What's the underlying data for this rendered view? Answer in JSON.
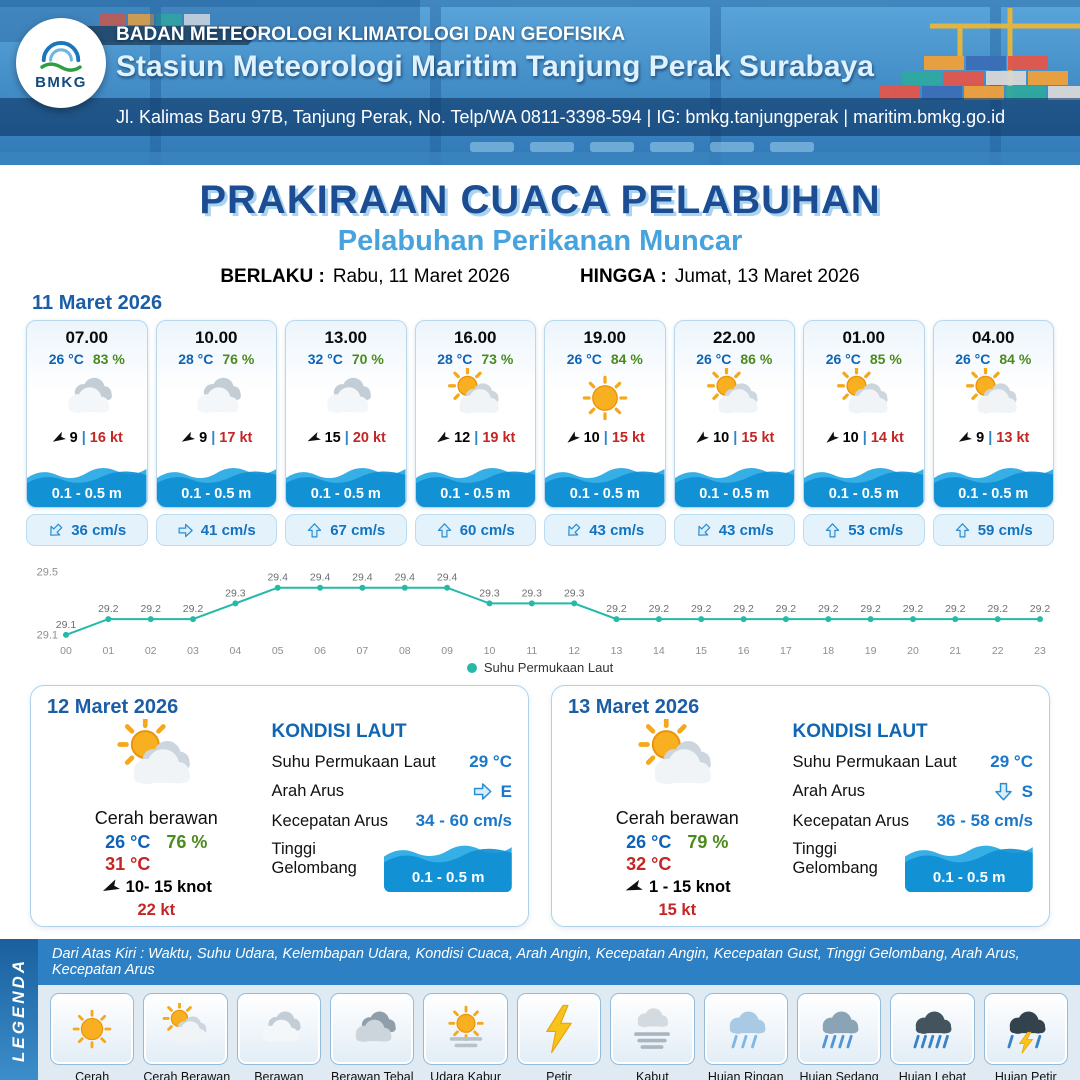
{
  "header": {
    "agency": "BADAN METEOROLOGI KLIMATOLOGI DAN GEOFISIKA",
    "station": "Stasiun Meteorologi Maritim Tanjung Perak Surabaya",
    "address": "Jl. Kalimas Baru 97B, Tanjung Perak, No. Telp/WA 0811-3398-594 | IG: bmkg.tanjungperak | maritim.bmkg.go.id",
    "logo_text": "BMKG"
  },
  "title": {
    "main": "PRAKIRAAN CUACA PELABUHAN",
    "sub": "Pelabuhan Perikanan Muncar",
    "berlaku_label": "BERLAKU :",
    "berlaku_value": "Rabu, 11 Maret 2026",
    "hingga_label": "HINGGA :",
    "hingga_value": "Jumat, 13 Maret 2026"
  },
  "forecast": {
    "date": "11 Maret 2026",
    "sep": "|",
    "cards": [
      {
        "time": "07.00",
        "temp": "26 °C",
        "humidity": "83 %",
        "icon": "cloudy",
        "wind_deg": 240,
        "wind_speed": "9",
        "gust": "16 kt",
        "wave": "0.1 - 0.5 m",
        "current_deg": 225,
        "current": "36 cm/s"
      },
      {
        "time": "10.00",
        "temp": "28 °C",
        "humidity": "76 %",
        "icon": "cloudy",
        "wind_deg": 240,
        "wind_speed": "9",
        "gust": "17 kt",
        "wave": "0.1 - 0.5 m",
        "current_deg": 90,
        "current": "41 cm/s"
      },
      {
        "time": "13.00",
        "temp": "32 °C",
        "humidity": "70 %",
        "icon": "cloudy",
        "wind_deg": 245,
        "wind_speed": "15",
        "gust": "20 kt",
        "wave": "0.1 - 0.5 m",
        "current_deg": 0,
        "current": "67 cm/s"
      },
      {
        "time": "16.00",
        "temp": "28 °C",
        "humidity": "73 %",
        "icon": "partly-cloudy",
        "wind_deg": 235,
        "wind_speed": "12",
        "gust": "19 kt",
        "wave": "0.1 - 0.5 m",
        "current_deg": 0,
        "current": "60 cm/s"
      },
      {
        "time": "19.00",
        "temp": "26 °C",
        "humidity": "84 %",
        "icon": "sunny",
        "wind_deg": 230,
        "wind_speed": "10",
        "gust": "15 kt",
        "wave": "0.1 - 0.5 m",
        "current_deg": 225,
        "current": "43 cm/s"
      },
      {
        "time": "22.00",
        "temp": "26 °C",
        "humidity": "86 %",
        "icon": "partly-cloudy",
        "wind_deg": 230,
        "wind_speed": "10",
        "gust": "15 kt",
        "wave": "0.1 - 0.5 m",
        "current_deg": 225,
        "current": "43 cm/s"
      },
      {
        "time": "01.00",
        "temp": "26 °C",
        "humidity": "85 %",
        "icon": "partly-cloudy",
        "wind_deg": 230,
        "wind_speed": "10",
        "gust": "14 kt",
        "wave": "0.1 - 0.5 m",
        "current_deg": 0,
        "current": "53 cm/s"
      },
      {
        "time": "04.00",
        "temp": "26 °C",
        "humidity": "84 %",
        "icon": "partly-cloudy",
        "wind_deg": 240,
        "wind_speed": "9",
        "gust": "13 kt",
        "wave": "0.1 - 0.5 m",
        "current_deg": 0,
        "current": "59 cm/s"
      }
    ]
  },
  "chart_data": {
    "type": "line",
    "title": "",
    "legend": "Suhu Permukaan Laut",
    "color": "#25b9a8",
    "x": [
      "00",
      "01",
      "02",
      "03",
      "04",
      "05",
      "06",
      "07",
      "08",
      "09",
      "10",
      "11",
      "12",
      "13",
      "14",
      "15",
      "16",
      "17",
      "18",
      "19",
      "20",
      "21",
      "22",
      "23"
    ],
    "values": [
      29.1,
      29.2,
      29.2,
      29.2,
      29.3,
      29.4,
      29.4,
      29.4,
      29.4,
      29.4,
      29.3,
      29.3,
      29.3,
      29.2,
      29.2,
      29.2,
      29.2,
      29.2,
      29.2,
      29.2,
      29.2,
      29.2,
      29.2,
      29.2
    ],
    "ylim": [
      29.08,
      29.5
    ],
    "yticks": [
      29.5,
      29.1
    ],
    "xlabel": "",
    "ylabel": ""
  },
  "daily": [
    {
      "date": "12 Maret 2026",
      "icon": "partly-cloudy",
      "condition": "Cerah berawan",
      "temp_min": "26 °C",
      "temp_max": "31 °C",
      "humidity": "76 %",
      "wind_deg": 245,
      "wind": "10- 15 knot",
      "gust": "22 kt",
      "sea": {
        "heading": "KONDISI LAUT",
        "sst_label": "Suhu Permukaan Laut",
        "sst": "29 °C",
        "arus_label": "Arah Arus",
        "arus_deg": 90,
        "arus_dir": "E",
        "kec_label": "Kecepatan Arus",
        "kec": "34 - 60 cm/s",
        "gel_label": "Tinggi Gelombang",
        "gel": "0.1 - 0.5 m"
      }
    },
    {
      "date": "13 Maret 2026",
      "icon": "partly-cloudy",
      "condition": "Cerah berawan",
      "temp_min": "26 °C",
      "temp_max": "32 °C",
      "humidity": "79 %",
      "wind_deg": 250,
      "wind": "1 - 15 knot",
      "gust": "15 kt",
      "sea": {
        "heading": "KONDISI LAUT",
        "sst_label": "Suhu Permukaan Laut",
        "sst": "29 °C",
        "arus_label": "Arah Arus",
        "arus_deg": 180,
        "arus_dir": "S",
        "kec_label": "Kecepatan Arus",
        "kec": "36 - 58 cm/s",
        "gel_label": "Tinggi Gelombang",
        "gel": "0.1 - 0.5 m"
      }
    }
  ],
  "legend": {
    "title": "LEGENDA",
    "description": "Dari Atas Kiri : Waktu, Suhu Udara, Kelembapan Udara, Kondisi Cuaca, Arah Angin, Kecepatan Angin, Kecepatan Gust, Tinggi Gelombang, Arah Arus, Kecepatan Arus",
    "items": [
      {
        "label": "Cerah",
        "icon": "sunny"
      },
      {
        "label": "Cerah Berawan",
        "icon": "partly-cloudy"
      },
      {
        "label": "Berawan",
        "icon": "cloudy"
      },
      {
        "label": "Berawan Tebal",
        "icon": "overcast"
      },
      {
        "label": "Udara Kabur",
        "icon": "haze"
      },
      {
        "label": "Petir",
        "icon": "lightning"
      },
      {
        "label": "Kabut",
        "icon": "fog"
      },
      {
        "label": "Hujan Ringan",
        "icon": "rain-light"
      },
      {
        "label": "Hujan Sedang",
        "icon": "rain-medium"
      },
      {
        "label": "Hujan Lebat",
        "icon": "rain-heavy"
      },
      {
        "label": "Hujan Petir",
        "icon": "thunderstorm"
      }
    ]
  },
  "colors": {
    "accent_blue": "#1c4d92",
    "light_blue": "#47a3dd",
    "temp_blue": "#0e63b6",
    "humidity_green": "#4b8a1d",
    "gust_red": "#c42525",
    "wave_blue": "#0f8fd4",
    "sst_teal": "#25b9a8"
  }
}
